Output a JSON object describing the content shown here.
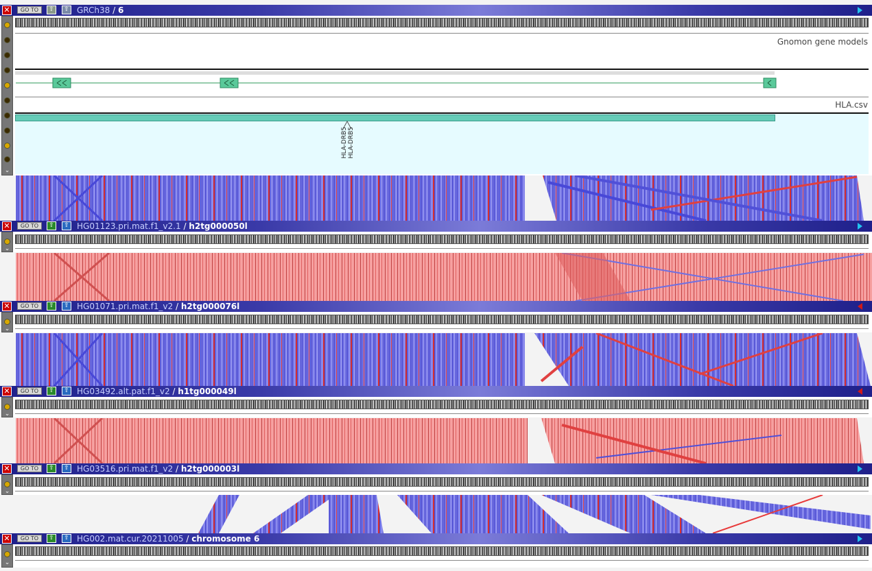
{
  "tracks": [
    {
      "assembly": "GRCh38",
      "sequence": "6",
      "direction": "right"
    },
    {
      "assembly": "HG01123.pri.mat.f1_v2.1",
      "sequence": "h2tg000050l",
      "direction": "right"
    },
    {
      "assembly": "HG01071.pri.mat.f1_v2",
      "sequence": "h2tg000076l",
      "direction": "left"
    },
    {
      "assembly": "HG03492.alt.pat.f1_v2",
      "sequence": "h1tg000049l",
      "direction": "left"
    },
    {
      "assembly": "HG03516.pri.mat.f1_v2",
      "sequence": "h2tg000003l",
      "direction": "right"
    },
    {
      "assembly": "HG002.mat.cur.20211005",
      "sequence": "chromosome 6",
      "direction": "right"
    }
  ],
  "labels": {
    "close": "✕",
    "goto": "GO TO",
    "slash": " / ",
    "up": "⇧",
    "chevron": "⌄"
  },
  "reference_tracks": {
    "gene_models": "Gnomon gene models",
    "csv_track": "HLA.csv",
    "gene_label_1": "HLA-DRB5",
    "gene_label_2": "HLA-DRB5"
  },
  "colors": {
    "forward_alignment": "#6a6ae8",
    "reverse_alignment": "#e83a3a",
    "pink_block": "#f6a0a0",
    "gene_box": "#5ac99a",
    "csv_feature": "#66ccb8",
    "csv_bg": "#e6fbff"
  }
}
